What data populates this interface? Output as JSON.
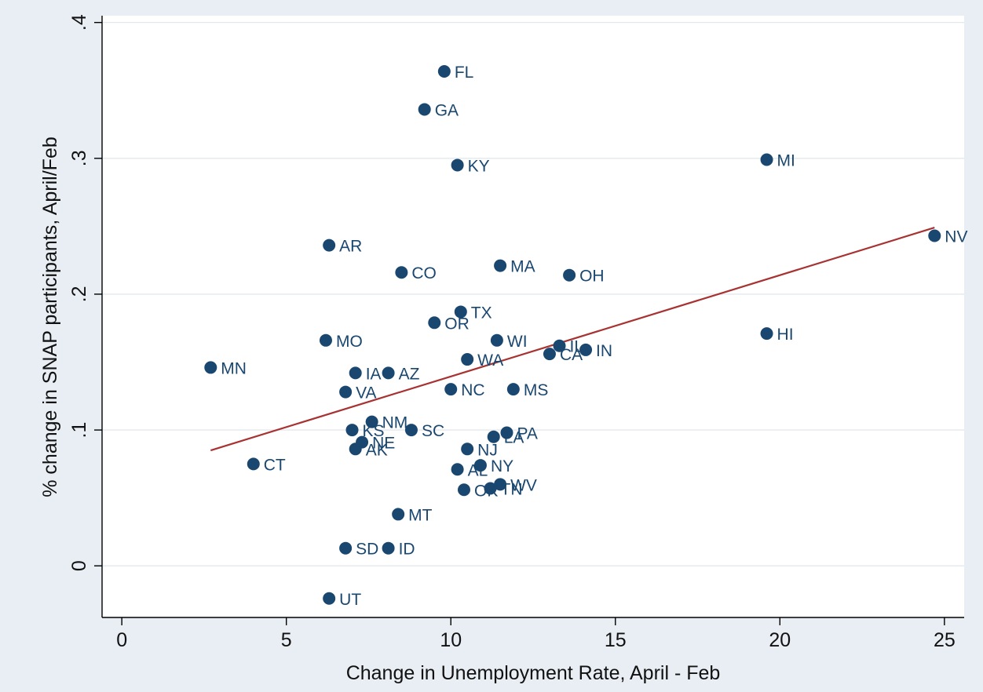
{
  "chart_data": {
    "type": "scatter",
    "title": "",
    "xlabel": "Change in Unemployment Rate, April - Feb",
    "ylabel": "% change in SNAP participants, April/Feb",
    "xlim": [
      -0.6,
      25.6
    ],
    "ylim": [
      -0.038,
      0.405
    ],
    "xticks": [
      0,
      5,
      10,
      15,
      20,
      25
    ],
    "xtick_labels": [
      "0",
      "5",
      "10",
      "15",
      "20",
      "25"
    ],
    "yticks": [
      0,
      0.1,
      0.2,
      0.3,
      0.4
    ],
    "ytick_labels": [
      "0",
      ".1",
      ".2",
      ".3",
      ".4"
    ],
    "grid": true,
    "legend": "none",
    "colors": {
      "points": "#1a476f",
      "fit_line": "#a83232",
      "background": "#e8eef3"
    },
    "points": [
      {
        "label": "FL",
        "x": 9.8,
        "y": 0.364
      },
      {
        "label": "GA",
        "x": 9.2,
        "y": 0.336
      },
      {
        "label": "KY",
        "x": 10.2,
        "y": 0.295
      },
      {
        "label": "MI",
        "x": 19.6,
        "y": 0.299
      },
      {
        "label": "NV",
        "x": 24.7,
        "y": 0.243
      },
      {
        "label": "AR",
        "x": 6.3,
        "y": 0.236
      },
      {
        "label": "CO",
        "x": 8.5,
        "y": 0.216
      },
      {
        "label": "MA",
        "x": 11.5,
        "y": 0.221
      },
      {
        "label": "OH",
        "x": 13.6,
        "y": 0.214
      },
      {
        "label": "TX",
        "x": 10.3,
        "y": 0.187
      },
      {
        "label": "OR",
        "x": 9.5,
        "y": 0.179
      },
      {
        "label": "HI",
        "x": 19.6,
        "y": 0.171
      },
      {
        "label": "MO",
        "x": 6.2,
        "y": 0.166
      },
      {
        "label": "WI",
        "x": 11.4,
        "y": 0.166
      },
      {
        "label": "IL",
        "x": 13.3,
        "y": 0.162
      },
      {
        "label": "IN",
        "x": 14.1,
        "y": 0.159
      },
      {
        "label": "CA",
        "x": 13.0,
        "y": 0.156
      },
      {
        "label": "WA",
        "x": 10.5,
        "y": 0.152
      },
      {
        "label": "MN",
        "x": 2.7,
        "y": 0.146
      },
      {
        "label": "IA",
        "x": 7.1,
        "y": 0.142
      },
      {
        "label": "AZ",
        "x": 8.1,
        "y": 0.142
      },
      {
        "label": "NC",
        "x": 10.0,
        "y": 0.13
      },
      {
        "label": "MS",
        "x": 11.9,
        "y": 0.13
      },
      {
        "label": "VA",
        "x": 6.8,
        "y": 0.128
      },
      {
        "label": "NM",
        "x": 7.6,
        "y": 0.106
      },
      {
        "label": "KS",
        "x": 7.0,
        "y": 0.1
      },
      {
        "label": "SC",
        "x": 8.8,
        "y": 0.1
      },
      {
        "label": "PA",
        "x": 11.7,
        "y": 0.098
      },
      {
        "label": "LA",
        "x": 11.3,
        "y": 0.095
      },
      {
        "label": "NE",
        "x": 7.3,
        "y": 0.091
      },
      {
        "label": "AK",
        "x": 7.1,
        "y": 0.086
      },
      {
        "label": "NJ",
        "x": 10.5,
        "y": 0.086
      },
      {
        "label": "CT",
        "x": 4.0,
        "y": 0.075
      },
      {
        "label": "NY",
        "x": 10.9,
        "y": 0.074
      },
      {
        "label": "AL",
        "x": 10.2,
        "y": 0.071
      },
      {
        "label": "WV",
        "x": 11.5,
        "y": 0.06
      },
      {
        "label": "TN",
        "x": 11.2,
        "y": 0.057
      },
      {
        "label": "OK",
        "x": 10.4,
        "y": 0.056
      },
      {
        "label": "MT",
        "x": 8.4,
        "y": 0.038
      },
      {
        "label": "SD",
        "x": 6.8,
        "y": 0.013
      },
      {
        "label": "ID",
        "x": 8.1,
        "y": 0.013
      },
      {
        "label": "UT",
        "x": 6.3,
        "y": -0.024
      }
    ],
    "fit_line": {
      "x": [
        2.7,
        24.7
      ],
      "y": [
        0.085,
        0.249
      ]
    }
  }
}
